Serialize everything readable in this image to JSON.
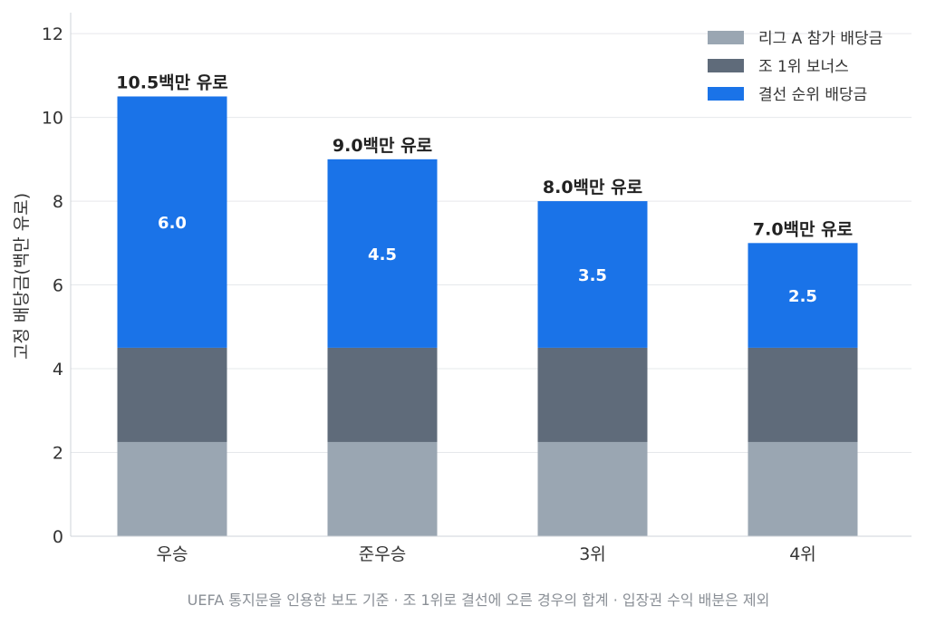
{
  "chart_data": {
    "type": "bar",
    "stacked": true,
    "categories": [
      "우승",
      "준우승",
      "3위",
      "4위"
    ],
    "series": [
      {
        "name": "리그 A 참가 배당금",
        "values": [
          2.25,
          2.25,
          2.25,
          2.25
        ],
        "color": "#9aa6b2"
      },
      {
        "name": "조 1위 보너스",
        "values": [
          2.25,
          2.25,
          2.25,
          2.25
        ],
        "color": "#5f6b7a"
      },
      {
        "name": "결선 순위 배당금",
        "values": [
          6.0,
          4.5,
          3.5,
          2.5
        ],
        "color": "#1a73e8"
      }
    ],
    "segment_labels": [
      "6.0",
      "4.5",
      "3.5",
      "2.5"
    ],
    "total_labels": [
      "10.5백만 유로",
      "9.0백만 유로",
      "8.0백만 유로",
      "7.0백만 유로"
    ],
    "ylabel": "고정 배당금(백만 유로)",
    "ylim": [
      0,
      12.5
    ],
    "yticks": [
      "0",
      "2",
      "4",
      "6",
      "8",
      "10",
      "12"
    ],
    "grid": true,
    "legend_position": "top-right",
    "footnote": "UEFA 통지문을 인용한 보도 기준 · 조 1위로 결선에 오른 경우의 합계 · 입장권 수익 배분은 제외"
  }
}
